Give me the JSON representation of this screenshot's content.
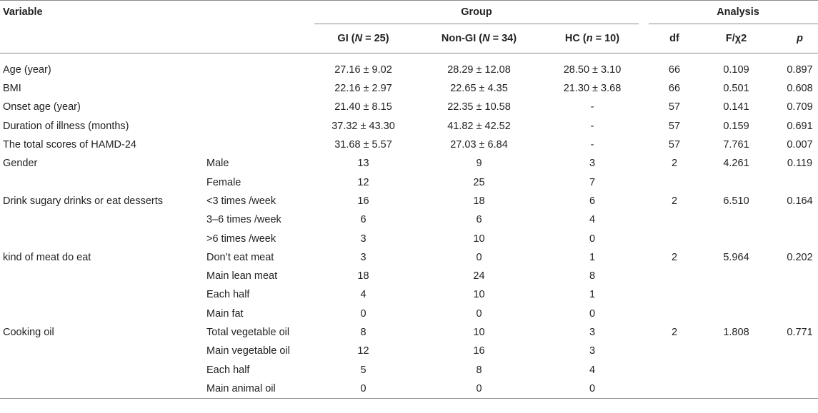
{
  "header": {
    "variable": "Variable",
    "group": "Group",
    "analysis": "Analysis",
    "columns": [
      {
        "name": "GI",
        "nsym": "N",
        "nval": "= 25)"
      },
      {
        "name": "Non-GI",
        "nsym": "N",
        "nval": "= 34)"
      },
      {
        "name": "HC",
        "nsym": "n",
        "nval": "= 10)"
      }
    ],
    "df": "df",
    "stat": "F/χ2",
    "p": "p"
  },
  "rows": [
    {
      "variable": "Age (year)",
      "sub": "",
      "gi": "27.16 ± 9.02",
      "nongi": "28.29 ± 12.08",
      "hc": "28.50 ± 3.10",
      "df": "66",
      "stat": "0.109",
      "p": "0.897"
    },
    {
      "variable": "BMI",
      "sub": "",
      "gi": "22.16 ± 2.97",
      "nongi": "22.65 ± 4.35",
      "hc": "21.30 ± 3.68",
      "df": "66",
      "stat": "0.501",
      "p": "0.608"
    },
    {
      "variable": "Onset age (year)",
      "sub": "",
      "gi": "21.40 ± 8.15",
      "nongi": "22.35 ± 10.58",
      "hc": "-",
      "df": "57",
      "stat": "0.141",
      "p": "0.709"
    },
    {
      "variable": "Duration of illness (months)",
      "sub": "",
      "gi": "37.32 ± 43.30",
      "nongi": "41.82 ± 42.52",
      "hc": "-",
      "df": "57",
      "stat": "0.159",
      "p": "0.691"
    },
    {
      "variable": "The total scores of HAMD-24",
      "sub": "",
      "gi": "31.68 ± 5.57",
      "nongi": "27.03 ± 6.84",
      "hc": "-",
      "df": "57",
      "stat": "7.761",
      "p": "0.007"
    },
    {
      "variable": "Gender",
      "sub": "Male",
      "gi": "13",
      "nongi": "9",
      "hc": "3",
      "df": "2",
      "stat": "4.261",
      "p": "0.119"
    },
    {
      "variable": "",
      "sub": "Female",
      "gi": "12",
      "nongi": "25",
      "hc": "7",
      "df": "",
      "stat": "",
      "p": ""
    },
    {
      "variable": "Drink sugary drinks or eat desserts",
      "sub": "<3 times /week",
      "gi": "16",
      "nongi": "18",
      "hc": "6",
      "df": "2",
      "stat": "6.510",
      "p": "0.164"
    },
    {
      "variable": "",
      "sub": "3–6 times /week",
      "gi": "6",
      "nongi": "6",
      "hc": "4",
      "df": "",
      "stat": "",
      "p": ""
    },
    {
      "variable": "",
      "sub": ">6 times /week",
      "gi": "3",
      "nongi": "10",
      "hc": "0",
      "df": "",
      "stat": "",
      "p": ""
    },
    {
      "variable": "kind of meat do eat",
      "sub": "Don’t eat meat",
      "gi": "3",
      "nongi": "0",
      "hc": "1",
      "df": "2",
      "stat": "5.964",
      "p": "0.202"
    },
    {
      "variable": "",
      "sub": "Main lean meat",
      "gi": "18",
      "nongi": "24",
      "hc": "8",
      "df": "",
      "stat": "",
      "p": ""
    },
    {
      "variable": "",
      "sub": "Each half",
      "gi": "4",
      "nongi": "10",
      "hc": "1",
      "df": "",
      "stat": "",
      "p": ""
    },
    {
      "variable": "",
      "sub": "Main fat",
      "gi": "0",
      "nongi": "0",
      "hc": "0",
      "df": "",
      "stat": "",
      "p": ""
    },
    {
      "variable": "Cooking oil",
      "sub": "Total vegetable oil",
      "gi": "8",
      "nongi": "10",
      "hc": "3",
      "df": "2",
      "stat": "1.808",
      "p": "0.771"
    },
    {
      "variable": "",
      "sub": "Main vegetable oil",
      "gi": "12",
      "nongi": "16",
      "hc": "3",
      "df": "",
      "stat": "",
      "p": ""
    },
    {
      "variable": "",
      "sub": "Each half",
      "gi": "5",
      "nongi": "8",
      "hc": "4",
      "df": "",
      "stat": "",
      "p": ""
    },
    {
      "variable": "",
      "sub": "Main animal oil",
      "gi": "0",
      "nongi": "0",
      "hc": "0",
      "df": "",
      "stat": "",
      "p": ""
    }
  ]
}
